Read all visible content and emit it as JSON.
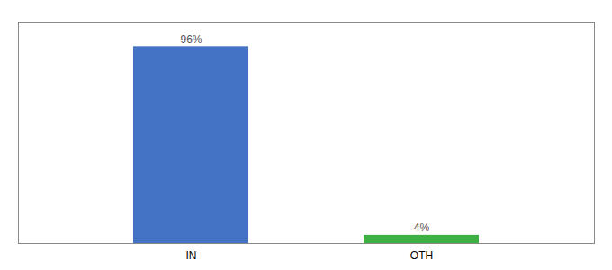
{
  "chart_data": {
    "type": "bar",
    "categories": [
      "IN",
      "OTH"
    ],
    "values": [
      96,
      4
    ],
    "value_labels": [
      "96%",
      "4%"
    ],
    "colors": [
      "#4472c4",
      "#3cb043"
    ],
    "ylim": [
      0,
      108
    ],
    "yticks": [],
    "tick_labels": "x",
    "data_labels": true
  }
}
